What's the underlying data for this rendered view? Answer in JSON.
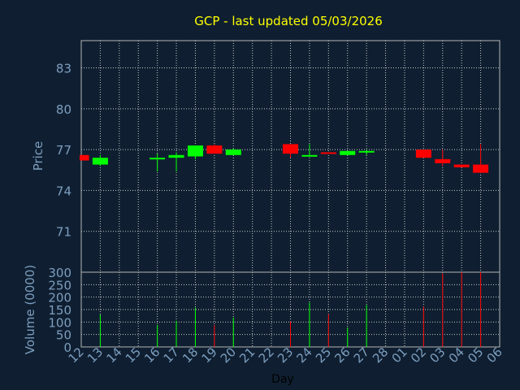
{
  "chart_data": {
    "type": "candlestick",
    "title": "GCP - last updated 05/03/2026",
    "xlabel": "Day",
    "price_ylabel": "Price",
    "volume_ylabel": "Volume (0000)",
    "grid": true,
    "x_ticks": [
      "12",
      "13",
      "14",
      "15",
      "16",
      "17",
      "18",
      "19",
      "20",
      "21",
      "22",
      "23",
      "24",
      "25",
      "26",
      "27",
      "28",
      "01",
      "02",
      "03",
      "04",
      "05",
      "06"
    ],
    "price_ylim": [
      68,
      85
    ],
    "price_ticks": [
      71,
      74,
      77,
      80,
      83
    ],
    "volume_ylim": [
      0,
      300
    ],
    "volume_ticks": [
      0,
      50,
      100,
      150,
      200,
      250,
      300
    ],
    "candles": [
      {
        "x": "12",
        "open": 76.6,
        "close": 76.2,
        "high": 76.6,
        "low": 76.2
      },
      {
        "x": "13",
        "open": 75.9,
        "close": 76.4,
        "high": 76.6,
        "low": 75.8
      },
      {
        "x": "16",
        "open": 76.3,
        "close": 76.4,
        "high": 76.7,
        "low": 75.4
      },
      {
        "x": "17",
        "open": 76.4,
        "close": 76.6,
        "high": 76.8,
        "low": 75.4
      },
      {
        "x": "18",
        "open": 76.5,
        "close": 77.3,
        "high": 77.3,
        "low": 76.3
      },
      {
        "x": "19",
        "open": 77.3,
        "close": 76.7,
        "high": 77.4,
        "low": 76.7
      },
      {
        "x": "20",
        "open": 76.6,
        "close": 77.0,
        "high": 77.1,
        "low": 76.6
      },
      {
        "x": "23",
        "open": 77.4,
        "close": 76.7,
        "high": 77.4,
        "low": 76.4
      },
      {
        "x": "24",
        "open": 76.5,
        "close": 76.6,
        "high": 77.4,
        "low": 76.5
      },
      {
        "x": "25",
        "open": 76.8,
        "close": 76.7,
        "high": 76.8,
        "low": 76.7
      },
      {
        "x": "26",
        "open": 76.6,
        "close": 76.9,
        "high": 76.9,
        "low": 76.6
      },
      {
        "x": "27",
        "open": 76.8,
        "close": 76.9,
        "high": 77.0,
        "low": 76.6
      },
      {
        "x": "02",
        "open": 77.0,
        "close": 76.4,
        "high": 77.0,
        "low": 76.4
      },
      {
        "x": "03",
        "open": 76.3,
        "close": 76.0,
        "high": 77.0,
        "low": 75.8
      },
      {
        "x": "04",
        "open": 75.9,
        "close": 75.7,
        "high": 75.9,
        "low": 75.7
      },
      {
        "x": "05",
        "open": 75.9,
        "close": 75.3,
        "high": 77.4,
        "low": 75.3
      }
    ],
    "volume": [
      {
        "x": "13",
        "value": 130
      },
      {
        "x": "16",
        "value": 88
      },
      {
        "x": "17",
        "value": 105
      },
      {
        "x": "18",
        "value": 158
      },
      {
        "x": "19",
        "value": 88
      },
      {
        "x": "20",
        "value": 118
      },
      {
        "x": "23",
        "value": 103
      },
      {
        "x": "24",
        "value": 178
      },
      {
        "x": "25",
        "value": 132
      },
      {
        "x": "26",
        "value": 78
      },
      {
        "x": "27",
        "value": 168
      },
      {
        "x": "02",
        "value": 162
      },
      {
        "x": "03",
        "value": 295
      },
      {
        "x": "04",
        "value": 300
      },
      {
        "x": "05",
        "value": 300
      }
    ],
    "colors": {
      "background": "#0f1f31",
      "title": "#ffff00",
      "axis_text": "#7d9ebf",
      "up": "#00ff00",
      "down": "#ff0000",
      "grid": "#c8c8c8",
      "frame": "#b4b4b4"
    }
  }
}
